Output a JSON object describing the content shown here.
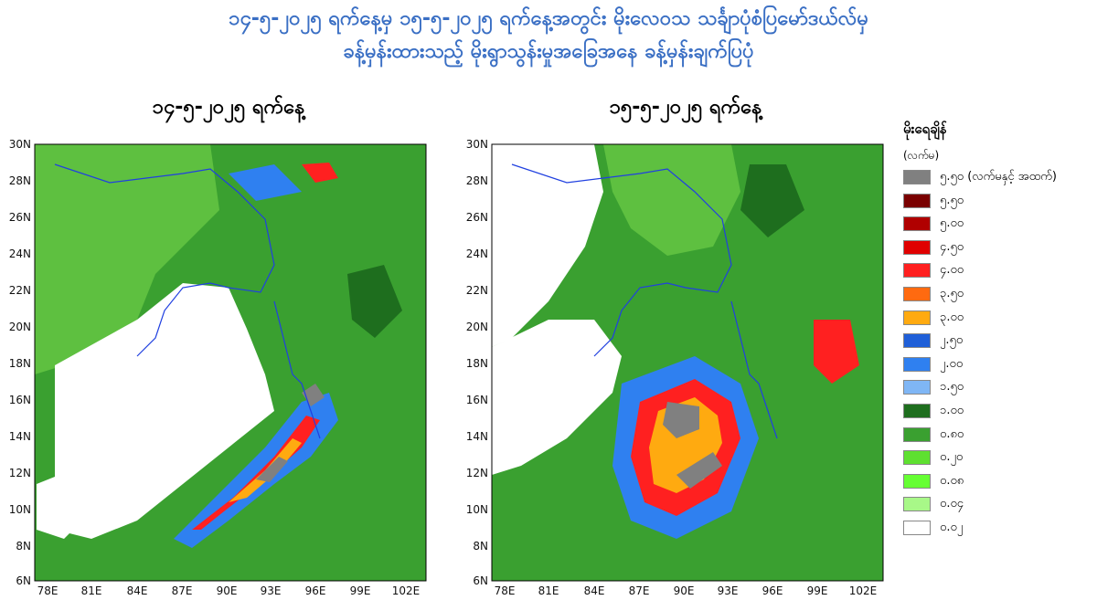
{
  "header": {
    "line1": "၁၄-၅-၂၀၂၅ ရက်နေ့မှ ၁၅-၅-၂၀၂၅ ရက်နေ့အတွင်း မိုးလေဝသ သင်္ချာပုံစံပြမော်ဒယ်လ်မှ",
    "line2": "ခန့်မှန်းထားသည့် မိုးရွာသွန်းမှုအခြေအနေ ခန့်မှန်းချက်ပြပုံ"
  },
  "maps": [
    {
      "caption": "၁၄-၅-၂၀၂၅ ရက်နေ့"
    },
    {
      "caption": "၁၅-၅-၂၀၂၅ ရက်နေ့"
    }
  ],
  "axes": {
    "lat_ticks": [
      "30N",
      "28N",
      "26N",
      "24N",
      "22N",
      "20N",
      "18N",
      "16N",
      "14N",
      "12N",
      "10N",
      "8N",
      "6N"
    ],
    "lon_ticks": [
      "78E",
      "81E",
      "84E",
      "87E",
      "90E",
      "93E",
      "96E",
      "99E",
      "102E"
    ]
  },
  "legend": {
    "title": "မိုးရေချိန်",
    "unit": "(လက်မ)",
    "items": [
      {
        "label": "၅.၅၀ (လက်မနှင့် အထက်)",
        "color": "#808080"
      },
      {
        "label": "၅.၅၀",
        "color": "#7a0000"
      },
      {
        "label": "၅.၀၀",
        "color": "#b00000"
      },
      {
        "label": "၄.၅၀",
        "color": "#e00000"
      },
      {
        "label": "၄.၀၀",
        "color": "#ff2020"
      },
      {
        "label": "၃.၅၀",
        "color": "#ff6a10"
      },
      {
        "label": "၃.၀၀",
        "color": "#ffaa10"
      },
      {
        "label": "၂.၅၀",
        "color": "#1f5fd8"
      },
      {
        "label": "၂.၀၀",
        "color": "#2f80f0"
      },
      {
        "label": "၁.၅၀",
        "color": "#7fb6f5"
      },
      {
        "label": "၁.၀၀",
        "color": "#1e6e1e"
      },
      {
        "label": "၀.၈၀",
        "color": "#3aa030"
      },
      {
        "label": "၀.၂၀",
        "color": "#5ee030"
      },
      {
        "label": "၀.၀၈",
        "color": "#66ff33"
      },
      {
        "label": "၀.၀၄",
        "color": "#a8f888"
      },
      {
        "label": "၀.၀၂",
        "color": "#ffffff"
      }
    ]
  }
}
